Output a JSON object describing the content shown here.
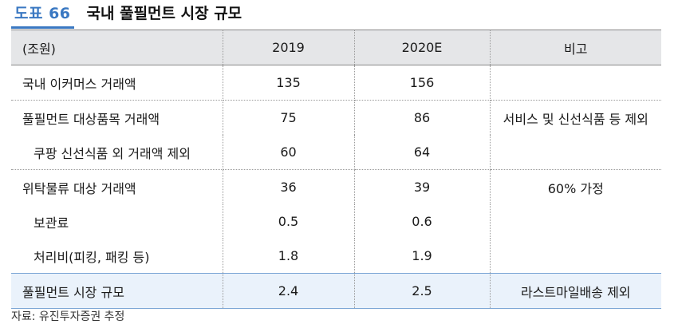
{
  "figure": {
    "label": "도표 66",
    "title": "국내 풀필먼트 시장 규모"
  },
  "table": {
    "headers": [
      "(조원)",
      "2019",
      "2020E",
      "비고"
    ],
    "rows": [
      {
        "name": "국내 이커머스 거래액",
        "v2019": "135",
        "v2020": "156",
        "note": ""
      },
      {
        "name": "풀필먼트 대상품목 거래액",
        "v2019": "75",
        "v2020": "86",
        "note": "서비스 및 신선식품 등 제외"
      },
      {
        "name": "쿠팡 신선식품 외 거래액 제외",
        "v2019": "60",
        "v2020": "64",
        "note": ""
      },
      {
        "name": "위탁물류 대상 거래액",
        "v2019": "36",
        "v2020": "39",
        "note": "60% 가정"
      },
      {
        "name": "보관료",
        "v2019": "0.5",
        "v2020": "0.6",
        "note": ""
      },
      {
        "name": "처리비(피킹, 패킹 등)",
        "v2019": "1.8",
        "v2020": "1.9",
        "note": ""
      },
      {
        "name": "풀필먼트 시장 규모",
        "v2019": "2.4",
        "v2020": "2.5",
        "note": "라스트마일배송 제외"
      }
    ]
  },
  "source": "자료: 유진투자증권 추정",
  "colors": {
    "accent": "#3a78c2",
    "header_bg": "#e5e6e8",
    "total_bg": "#eaf2fb"
  }
}
